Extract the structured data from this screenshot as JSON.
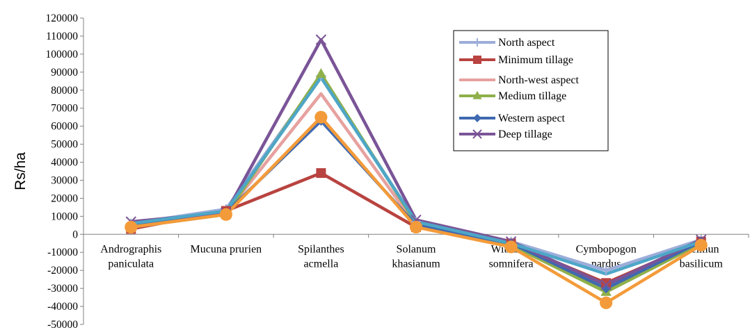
{
  "chart_data": {
    "type": "line",
    "ylabel": "Rs/ha",
    "ylim": [
      -50000,
      120000
    ],
    "ytick_step": 10000,
    "categories": [
      [
        "Andrographis",
        "paniculata"
      ],
      [
        "Mucuna prurien"
      ],
      [
        "Spilanthes",
        "acmella"
      ],
      [
        "Solanum",
        "khasianum"
      ],
      [
        "Withania",
        "somnifera"
      ],
      [
        "Cymbopogon",
        "nardus"
      ],
      [
        "Ocimun",
        "basilicum"
      ]
    ],
    "legend_position": "top-right",
    "series": [
      {
        "name": "North aspect",
        "color": "#9dadd9",
        "marker": "plus",
        "values": [
          6000,
          14000,
          88000,
          7000,
          -4000,
          -20000,
          -3000
        ]
      },
      {
        "name": "Minimum tillage",
        "color": "#b84340",
        "marker": "square",
        "values": [
          3000,
          13000,
          34000,
          4000,
          -5000,
          -27000,
          -4000
        ]
      },
      {
        "name": "North-west aspect",
        "color": "#e6a19f",
        "marker": "none",
        "values": [
          5000,
          12000,
          78000,
          5000,
          -5000,
          -29000,
          -4000
        ]
      },
      {
        "name": "Medium tillage",
        "color": "#8fb04a",
        "marker": "triangle",
        "values": [
          4000,
          11000,
          89000,
          6000,
          -6000,
          -32000,
          -5000
        ]
      },
      {
        "name": "Western aspect",
        "color": "#3f69b0",
        "marker": "diamond",
        "values": [
          5000,
          12000,
          63000,
          5000,
          -5000,
          -30000,
          -4000
        ]
      },
      {
        "name": "Deep tillage",
        "color": "#7a5497",
        "marker": "x",
        "values": [
          7000,
          12000,
          108000,
          8000,
          -4000,
          -28000,
          -3000
        ]
      },
      {
        "name": "",
        "color": "#4ea6c7",
        "marker": "none",
        "values": [
          6000,
          13000,
          87000,
          7000,
          -5000,
          -22000,
          -4000
        ]
      },
      {
        "name": "",
        "color": "#f39b3a",
        "marker": "circle",
        "values": [
          4000,
          11000,
          65000,
          4000,
          -7000,
          -38000,
          -6000
        ]
      }
    ]
  }
}
